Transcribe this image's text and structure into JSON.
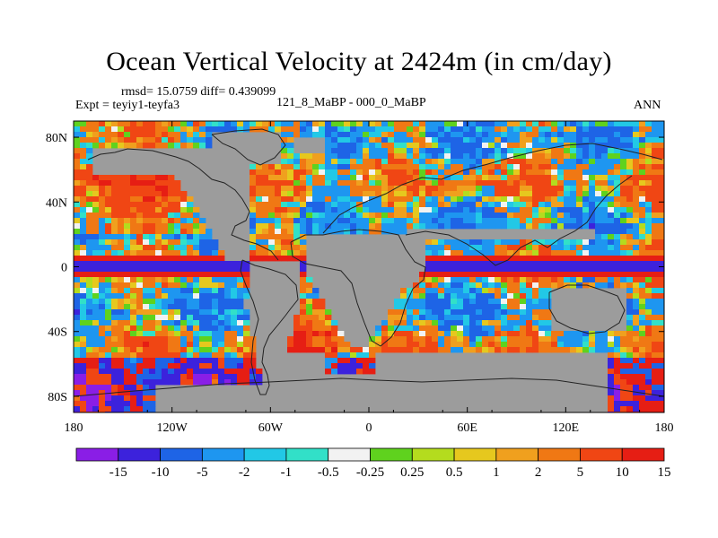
{
  "title": "Ocean Vertical Velocity at 2424m (in cm/day)",
  "stats": "rmsd= 15.0759 diff= 0.439099",
  "expt": "Expt = teyiy1-teyfa3",
  "center_label": "121_8_MaBP - 000_0_MaBP",
  "season": "ANN",
  "colors": {
    "land": "#9c9c9c",
    "coast": "#222222",
    "palette": [
      "#8a1ee6",
      "#3c22dc",
      "#1e64e6",
      "#1e96f0",
      "#22c8e6",
      "#32e0c8",
      "#f2f2f2",
      "#5fd21e",
      "#b4dc1e",
      "#e6c81e",
      "#f0a01e",
      "#f07814",
      "#f04614",
      "#e61e14"
    ]
  },
  "chart_data": {
    "type": "heatmap",
    "title": "Ocean Vertical Velocity at 2424m (in cm/day)",
    "xlabel": "",
    "ylabel": "",
    "x_ticks": [
      "180",
      "120W",
      "60W",
      "0",
      "60E",
      "120E",
      "180"
    ],
    "y_ticks": [
      "80N",
      "40N",
      "0",
      "40S",
      "80S"
    ],
    "xlim": [
      -180,
      180
    ],
    "ylim": [
      -90,
      90
    ],
    "colorbar_levels": [
      "-15",
      "-10",
      "-5",
      "-2",
      "-1",
      "-0.5",
      "-0.25",
      "0.25",
      "0.5",
      "1",
      "2",
      "5",
      "10",
      "15"
    ],
    "colorbar_bins": 14,
    "land_color": "gray"
  }
}
